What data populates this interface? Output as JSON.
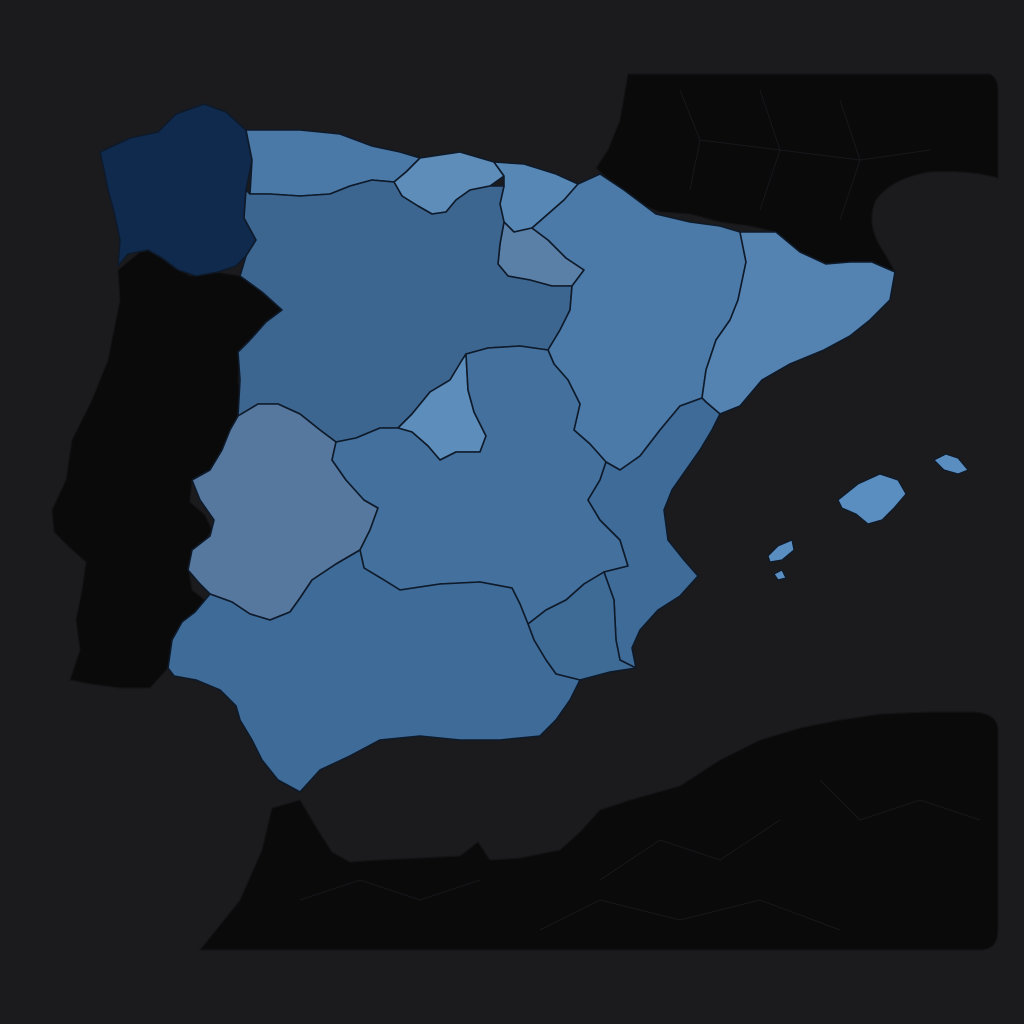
{
  "map": {
    "background": "#1b1b1d",
    "surrounding_land_color": "#0a0a0b",
    "border_color": "#0e1a2a",
    "regions": [
      {
        "id": "galicia",
        "color": "#0f2a4d"
      },
      {
        "id": "asturias-cantabria",
        "color": "#4a79a8"
      },
      {
        "id": "basque-country",
        "color": "#5e8db9"
      },
      {
        "id": "navarre",
        "color": "#5787b5"
      },
      {
        "id": "la-rioja",
        "color": "#5a80a8"
      },
      {
        "id": "castile-and-leon",
        "color": "#3c6690"
      },
      {
        "id": "aragon",
        "color": "#4b7aa8"
      },
      {
        "id": "catalonia",
        "color": "#5483b2"
      },
      {
        "id": "madrid",
        "color": "#5d8dbb"
      },
      {
        "id": "extremadura",
        "color": "#56789f"
      },
      {
        "id": "castile-la-mancha",
        "color": "#43709d"
      },
      {
        "id": "valencia",
        "color": "#3f6b98"
      },
      {
        "id": "murcia",
        "color": "#3e6a96"
      },
      {
        "id": "andalusia",
        "color": "#3f6b98"
      },
      {
        "id": "balearic-islands",
        "color": "#5a8ec0"
      }
    ]
  }
}
